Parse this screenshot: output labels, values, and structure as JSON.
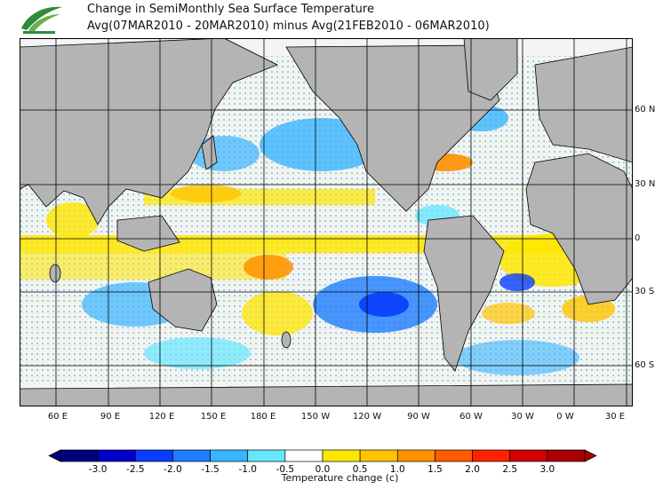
{
  "title_line1": "Change in SemiMonthly Sea Surface Temperature",
  "title_line2": "Avg(07MAR2010 - 20MAR2010) minus Avg(21FEB2010 - 06MAR2010)",
  "lat_labels": [
    "60 N",
    "30 N",
    "0",
    "30 S",
    "60 S"
  ],
  "lon_labels": [
    "60 E",
    "90 E",
    "120 E",
    "150 E",
    "180 E",
    "150 W",
    "120 W",
    "90 W",
    "60 W",
    "30 W",
    "0 W",
    "30 E"
  ],
  "colorbar": {
    "label": "Temperature change  (c)",
    "ticks": [
      "-3.0",
      "-2.5",
      "-2.0",
      "-1.5",
      "-1.0",
      "-0.5",
      "0.0",
      "0.5",
      "1.0",
      "1.5",
      "2.0",
      "2.5",
      "3.0"
    ],
    "colors": [
      "#00007e",
      "#0000cc",
      "#0a3cff",
      "#1e7dff",
      "#39b4ff",
      "#66e6ff",
      "#ffffff",
      "#ffe600",
      "#ffc400",
      "#ff9000",
      "#ff5a00",
      "#ff2200",
      "#d20000",
      "#aa0000"
    ]
  },
  "colors": {
    "land": "#b4b4b4",
    "ocean_base": "#f2f2f2",
    "grid": "#000000"
  }
}
